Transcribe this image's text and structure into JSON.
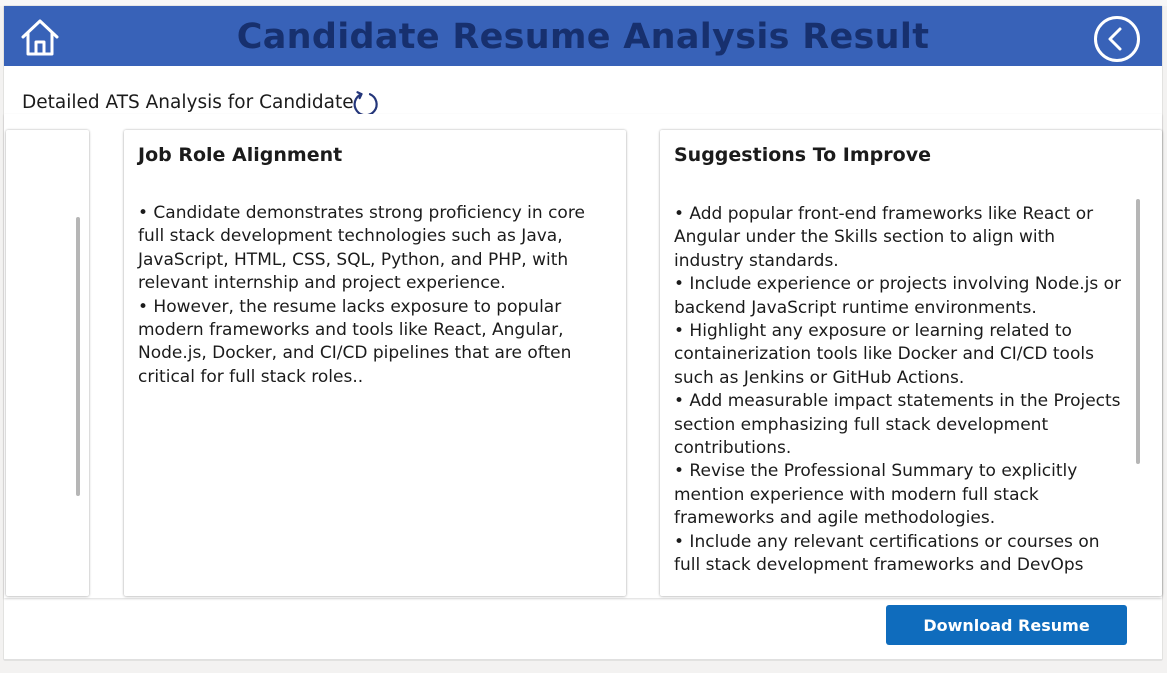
{
  "header": {
    "title": "Candidate Resume Analysis Result",
    "background_color": "#3862b8",
    "title_color": "#17306e",
    "home_icon": "home-icon",
    "back_icon": "back-arrow-circle-icon"
  },
  "subtitle": {
    "text": "Detailed ATS Analysis for Candidate",
    "refresh_icon": "refresh-icon"
  },
  "cards": {
    "job_role": {
      "title": "Job Role Alignment",
      "body": "• Candidate demonstrates strong proficiency in core full stack development technologies such as Java, JavaScript, HTML, CSS, SQL, Python, and PHP, with relevant internship and project experience.\n• However, the resume lacks exposure to popular modern frameworks and tools like React, Angular, Node.js, Docker, and CI/CD pipelines that are often critical for full stack roles.."
    },
    "suggestions": {
      "title": "Suggestions To Improve",
      "body": "• Add popular front-end frameworks like React or Angular under the Skills section to align with industry standards.\n• Include experience or projects involving Node.js or backend JavaScript runtime environments.\n• Highlight any exposure or learning related to containerization tools like Docker and CI/CD tools such as Jenkins or GitHub Actions.\n• Add measurable impact statements in the Projects section emphasizing full stack development contributions.\n• Revise the Professional Summary to explicitly mention experience with modern full stack frameworks and agile methodologies.\n• Include any relevant certifications or courses on full stack development frameworks and DevOps tools."
    }
  },
  "actions": {
    "download_label": "Download Resume",
    "button_color": "#0f6cbd"
  }
}
